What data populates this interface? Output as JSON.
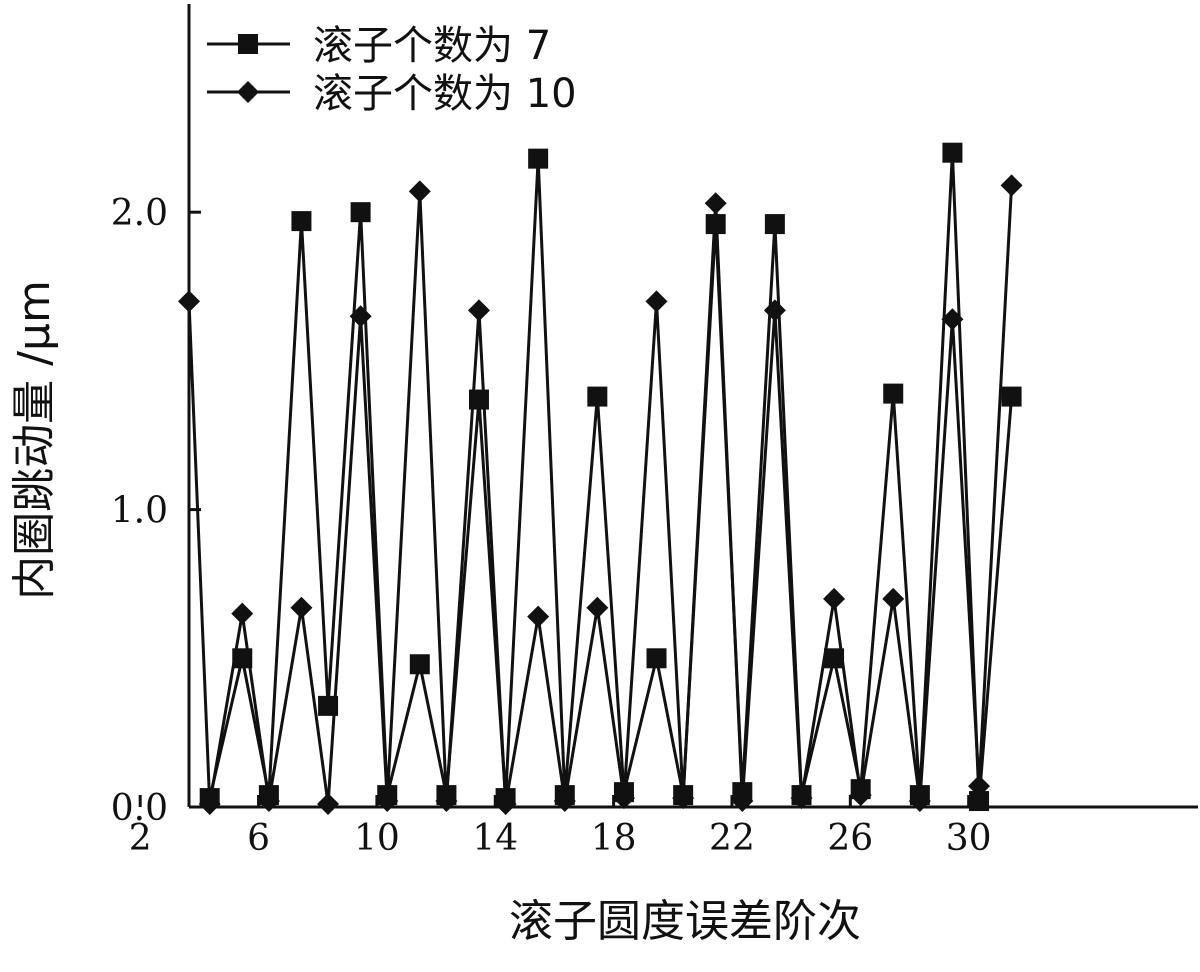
{
  "chart_data": {
    "type": "line",
    "title": "",
    "xlabel": "滚子圆度误差阶次",
    "ylabel": "内圈跳动量 /μm",
    "x_ticks": [
      "2",
      "6",
      "10",
      "14",
      "18",
      "22",
      "26",
      "30"
    ],
    "y_ticks": [
      "0.0",
      "1.0",
      "2.0"
    ],
    "xlim": [
      1.9,
      36.0
    ],
    "ylim": [
      0.0,
      2.7
    ],
    "grid": false,
    "legend_position": "top-left",
    "x": [
      2,
      3,
      4,
      5,
      6,
      7,
      8,
      9,
      10,
      11,
      12,
      13,
      14,
      15,
      16,
      17,
      18,
      19,
      20,
      21,
      22,
      23,
      24,
      25,
      26,
      27,
      28,
      29,
      30
    ],
    "series": [
      {
        "name": "滚子个数为 7",
        "marker": "square",
        "color": "#111111",
        "points": [
          [
            2.6,
            0.03
          ],
          [
            3.7,
            0.5
          ],
          [
            4.6,
            0.04
          ],
          [
            5.7,
            1.97
          ],
          [
            6.6,
            0.34
          ],
          [
            7.7,
            2.0
          ],
          [
            8.6,
            0.04
          ],
          [
            9.7,
            0.48
          ],
          [
            10.6,
            0.04
          ],
          [
            11.7,
            1.37
          ],
          [
            12.6,
            0.03
          ],
          [
            13.7,
            2.18
          ],
          [
            14.6,
            0.04
          ],
          [
            15.7,
            1.38
          ],
          [
            16.6,
            0.05
          ],
          [
            17.7,
            0.5
          ],
          [
            18.6,
            0.04
          ],
          [
            19.7,
            1.96
          ],
          [
            20.6,
            0.05
          ],
          [
            21.7,
            1.96
          ],
          [
            22.6,
            0.04
          ],
          [
            23.7,
            0.5
          ],
          [
            24.6,
            0.06
          ],
          [
            25.7,
            1.39
          ],
          [
            26.6,
            0.04
          ],
          [
            27.7,
            2.2
          ],
          [
            28.6,
            0.02
          ],
          [
            29.7,
            1.38
          ]
        ]
      },
      {
        "name": "滚子个数为 10",
        "marker": "diamond",
        "color": "#111111",
        "points": [
          [
            1.9,
            1.7
          ],
          [
            2.6,
            0.01
          ],
          [
            3.7,
            0.65
          ],
          [
            4.6,
            0.02
          ],
          [
            5.7,
            0.67
          ],
          [
            6.6,
            0.01
          ],
          [
            7.7,
            1.65
          ],
          [
            8.6,
            0.02
          ],
          [
            9.7,
            2.07
          ],
          [
            10.6,
            0.02
          ],
          [
            11.7,
            1.67
          ],
          [
            12.6,
            0.01
          ],
          [
            13.7,
            0.64
          ],
          [
            14.6,
            0.02
          ],
          [
            15.7,
            0.67
          ],
          [
            16.6,
            0.03
          ],
          [
            17.7,
            1.7
          ],
          [
            18.6,
            0.03
          ],
          [
            19.7,
            2.03
          ],
          [
            20.6,
            0.02
          ],
          [
            21.7,
            1.67
          ],
          [
            22.6,
            0.03
          ],
          [
            23.7,
            0.7
          ],
          [
            24.6,
            0.04
          ],
          [
            25.7,
            0.7
          ],
          [
            26.6,
            0.02
          ],
          [
            27.7,
            1.64
          ],
          [
            28.6,
            0.07
          ],
          [
            29.7,
            2.09
          ]
        ]
      }
    ]
  }
}
